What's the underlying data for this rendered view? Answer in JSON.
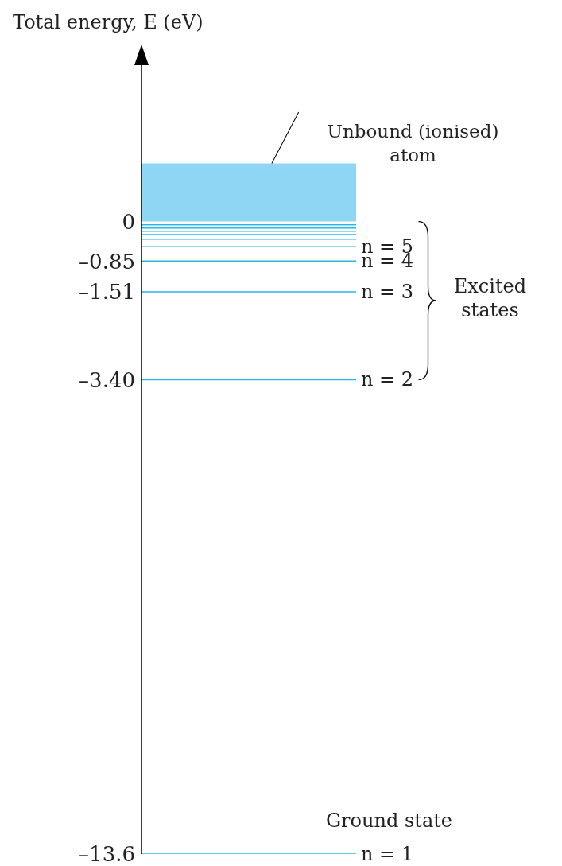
{
  "chart_data": {
    "type": "line",
    "ylabel": "Total energy, E (eV)",
    "categories": [
      null,
      null,
      null,
      null,
      null,
      null,
      null,
      null,
      null,
      null
    ],
    "tick_labels": "y",
    "ylim": [
      -13.6,
      3.6
    ],
    "yticks": [
      0,
      {
        "value": -0.85,
        "label": "–0.85"
      },
      {
        "value": -1.51,
        "label": "–1.51"
      },
      {
        "value": -3.4,
        "label": "–3.40"
      },
      {
        "value": -13.6,
        "label": "–13.6"
      }
    ],
    "marker": "none",
    "series": [
      {
        "name": "n = 1",
        "color": "#29b6e8",
        "values": [
          -13.6,
          -13.6,
          -13.6,
          -13.6,
          -13.6,
          -13.6,
          -13.6,
          -13.6,
          -13.6,
          -13.6
        ]
      },
      {
        "name": "n = 2",
        "color": "#29b6e8",
        "values": [
          -3.4,
          -3.4,
          -3.4,
          -3.4,
          -3.4,
          -3.4,
          -3.4,
          -3.4,
          -3.4,
          -3.4
        ]
      },
      {
        "name": "n = 3",
        "color": "#29b6e8",
        "values": [
          -1.51,
          -1.51,
          -1.51,
          -1.51,
          -1.51,
          -1.51,
          -1.51,
          -1.51,
          -1.51,
          -1.51
        ]
      },
      {
        "name": "n = 4",
        "color": "#29b6e8",
        "values": [
          -0.85,
          -0.85,
          -0.85,
          -0.85,
          -0.85,
          -0.85,
          -0.85,
          -0.85,
          -0.85,
          -0.85
        ]
      },
      {
        "name": "n = 5",
        "color": "#29b6e8",
        "values": [
          -0.54,
          -0.54,
          -0.54,
          -0.54,
          -0.54,
          -0.54,
          -0.54,
          -0.54,
          -0.54,
          -0.54
        ]
      },
      {
        "color": "#29b6e8",
        "values": [
          -0.38,
          -0.38,
          -0.38,
          -0.38,
          -0.38,
          -0.38,
          -0.38,
          -0.38,
          -0.38,
          -0.38
        ]
      },
      {
        "color": "#29b6e8",
        "values": [
          -0.28,
          -0.28,
          -0.28,
          -0.28,
          -0.28,
          -0.28,
          -0.28,
          -0.28,
          -0.28,
          -0.28
        ]
      },
      {
        "color": "#29b6e8",
        "values": [
          -0.21,
          -0.21,
          -0.21,
          -0.21,
          -0.21,
          -0.21,
          -0.21,
          -0.21,
          -0.21,
          -0.21
        ]
      },
      {
        "color": "#29b6e8",
        "values": [
          -0.14,
          -0.14,
          -0.14,
          -0.14,
          -0.14,
          -0.14,
          -0.14,
          -0.14,
          -0.14,
          -0.14
        ]
      },
      {
        "color": "#29b6e8",
        "values": [
          -0.07,
          -0.07,
          -0.07,
          -0.07,
          -0.07,
          -0.07,
          -0.07,
          -0.07,
          -0.07,
          -0.07
        ]
      }
    ],
    "bands": [
      {
        "axis": "y",
        "from": 0,
        "to": 1.25,
        "label": "Unbound (ionised) atom",
        "color": "#8fd6f5"
      }
    ],
    "annotations": [
      "Excited states",
      "Ground state"
    ]
  }
}
